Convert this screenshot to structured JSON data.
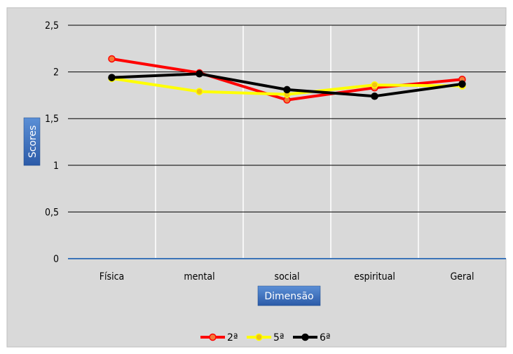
{
  "chart_data": {
    "type": "line",
    "title": "",
    "xlabel": "Dimensão",
    "ylabel": "Scores",
    "categories": [
      "Física",
      "mental",
      "social",
      "espiritual",
      "Geral"
    ],
    "ylim": [
      0,
      2.5
    ],
    "yticks": [
      "0",
      "0,5",
      "1",
      "1,5",
      "2",
      "2,5"
    ],
    "grid": "horizontal and vertical",
    "legend_position": "bottom",
    "series": [
      {
        "name": "2ª",
        "color": "#ff0000",
        "marker_fill": "#f07c38",
        "values": [
          2.14,
          1.99,
          1.7,
          1.83,
          1.92
        ]
      },
      {
        "name": "5ª",
        "color": "#ffff00",
        "marker_fill": "#f2c314",
        "values": [
          1.93,
          1.79,
          1.76,
          1.86,
          1.85
        ]
      },
      {
        "name": "6ª",
        "color": "#000000",
        "marker_fill": "#000000",
        "values": [
          1.94,
          1.98,
          1.81,
          1.74,
          1.87
        ]
      }
    ],
    "colors": {
      "chart_area": "#d9d9d9",
      "grid": "#ffffff",
      "hgrid": "#000000",
      "baseline": "#3b74b8",
      "label_box": "#3a6fbf"
    }
  }
}
